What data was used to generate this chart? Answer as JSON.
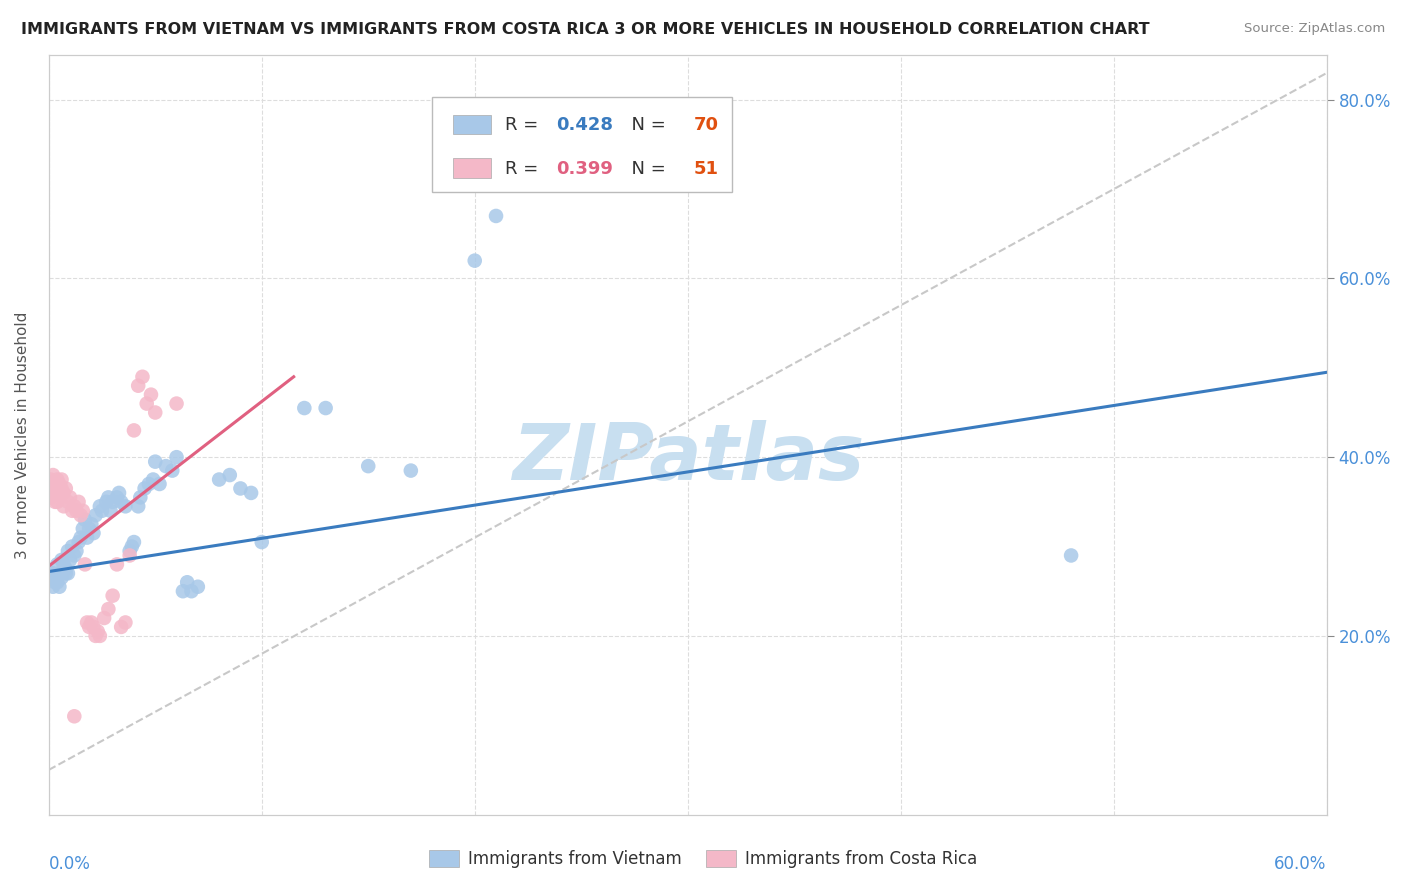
{
  "title": "IMMIGRANTS FROM VIETNAM VS IMMIGRANTS FROM COSTA RICA 3 OR MORE VEHICLES IN HOUSEHOLD CORRELATION CHART",
  "source": "Source: ZipAtlas.com",
  "ylabel_label": "3 or more Vehicles in Household",
  "x_min": 0.0,
  "x_max": 0.6,
  "y_min": 0.0,
  "y_max": 0.85,
  "x_ticks": [
    0.0,
    0.1,
    0.2,
    0.3,
    0.4,
    0.5,
    0.6
  ],
  "y_ticks": [
    0.2,
    0.4,
    0.6,
    0.8
  ],
  "x_tick_labels_left": [
    "0.0%",
    "",
    "",
    "",
    "",
    "",
    ""
  ],
  "x_tick_labels_right": [
    "",
    "",
    "",
    "",
    "",
    "",
    "60.0%"
  ],
  "y_tick_labels": [
    "20.0%",
    "40.0%",
    "60.0%",
    "80.0%"
  ],
  "vietnam_color": "#a8c8e8",
  "costa_rica_color": "#f4b8c8",
  "trend_vietnam_color": "#3a7bbf",
  "trend_costa_rica_color": "#e06080",
  "ref_line_color": "#c8c8c8",
  "watermark_text": "ZIPatlas",
  "watermark_color": "#c8dff0",
  "background_color": "#ffffff",
  "tick_color": "#4a90d9",
  "legend_vietnam_fill": "#a8c8e8",
  "legend_cr_fill": "#f4b8c8",
  "legend_border": "#bbbbbb",
  "vietnam_R": "0.428",
  "vietnam_N": "70",
  "costa_rica_R": "0.399",
  "costa_rica_N": "51",
  "R_label_color": "#333333",
  "vietnam_R_color": "#3a7bbf",
  "cr_R_color": "#e06080",
  "N_color": "#e05010",
  "vietnam_scatter": [
    [
      0.001,
      0.27
    ],
    [
      0.002,
      0.27
    ],
    [
      0.002,
      0.255
    ],
    [
      0.003,
      0.265
    ],
    [
      0.003,
      0.26
    ],
    [
      0.004,
      0.26
    ],
    [
      0.004,
      0.28
    ],
    [
      0.005,
      0.27
    ],
    [
      0.005,
      0.255
    ],
    [
      0.006,
      0.285
    ],
    [
      0.006,
      0.265
    ],
    [
      0.007,
      0.275
    ],
    [
      0.007,
      0.28
    ],
    [
      0.008,
      0.275
    ],
    [
      0.008,
      0.27
    ],
    [
      0.009,
      0.295
    ],
    [
      0.009,
      0.27
    ],
    [
      0.01,
      0.285
    ],
    [
      0.011,
      0.3
    ],
    [
      0.012,
      0.29
    ],
    [
      0.013,
      0.295
    ],
    [
      0.014,
      0.305
    ],
    [
      0.015,
      0.31
    ],
    [
      0.016,
      0.32
    ],
    [
      0.017,
      0.33
    ],
    [
      0.018,
      0.31
    ],
    [
      0.019,
      0.32
    ],
    [
      0.02,
      0.325
    ],
    [
      0.021,
      0.315
    ],
    [
      0.022,
      0.335
    ],
    [
      0.024,
      0.345
    ],
    [
      0.025,
      0.34
    ],
    [
      0.027,
      0.35
    ],
    [
      0.028,
      0.355
    ],
    [
      0.029,
      0.34
    ],
    [
      0.03,
      0.35
    ],
    [
      0.032,
      0.355
    ],
    [
      0.033,
      0.36
    ],
    [
      0.034,
      0.35
    ],
    [
      0.036,
      0.345
    ],
    [
      0.038,
      0.295
    ],
    [
      0.039,
      0.3
    ],
    [
      0.04,
      0.305
    ],
    [
      0.042,
      0.345
    ],
    [
      0.043,
      0.355
    ],
    [
      0.045,
      0.365
    ],
    [
      0.047,
      0.37
    ],
    [
      0.049,
      0.375
    ],
    [
      0.05,
      0.395
    ],
    [
      0.052,
      0.37
    ],
    [
      0.055,
      0.39
    ],
    [
      0.058,
      0.385
    ],
    [
      0.06,
      0.4
    ],
    [
      0.063,
      0.25
    ],
    [
      0.065,
      0.26
    ],
    [
      0.067,
      0.25
    ],
    [
      0.07,
      0.255
    ],
    [
      0.08,
      0.375
    ],
    [
      0.085,
      0.38
    ],
    [
      0.09,
      0.365
    ],
    [
      0.095,
      0.36
    ],
    [
      0.1,
      0.305
    ],
    [
      0.12,
      0.455
    ],
    [
      0.13,
      0.455
    ],
    [
      0.15,
      0.39
    ],
    [
      0.17,
      0.385
    ],
    [
      0.2,
      0.62
    ],
    [
      0.21,
      0.67
    ],
    [
      0.48,
      0.29
    ]
  ],
  "costa_rica_scatter": [
    [
      0.001,
      0.375
    ],
    [
      0.001,
      0.365
    ],
    [
      0.001,
      0.355
    ],
    [
      0.002,
      0.38
    ],
    [
      0.002,
      0.37
    ],
    [
      0.002,
      0.36
    ],
    [
      0.003,
      0.37
    ],
    [
      0.003,
      0.36
    ],
    [
      0.003,
      0.35
    ],
    [
      0.004,
      0.375
    ],
    [
      0.004,
      0.365
    ],
    [
      0.004,
      0.35
    ],
    [
      0.005,
      0.37
    ],
    [
      0.005,
      0.36
    ],
    [
      0.006,
      0.375
    ],
    [
      0.006,
      0.365
    ],
    [
      0.007,
      0.36
    ],
    [
      0.007,
      0.345
    ],
    [
      0.008,
      0.365
    ],
    [
      0.009,
      0.35
    ],
    [
      0.01,
      0.355
    ],
    [
      0.011,
      0.34
    ],
    [
      0.012,
      0.345
    ],
    [
      0.013,
      0.34
    ],
    [
      0.014,
      0.35
    ],
    [
      0.015,
      0.335
    ],
    [
      0.016,
      0.34
    ],
    [
      0.017,
      0.28
    ],
    [
      0.018,
      0.215
    ],
    [
      0.019,
      0.21
    ],
    [
      0.02,
      0.215
    ],
    [
      0.021,
      0.21
    ],
    [
      0.022,
      0.2
    ],
    [
      0.023,
      0.205
    ],
    [
      0.024,
      0.2
    ],
    [
      0.026,
      0.22
    ],
    [
      0.028,
      0.23
    ],
    [
      0.03,
      0.245
    ],
    [
      0.032,
      0.28
    ],
    [
      0.034,
      0.21
    ],
    [
      0.036,
      0.215
    ],
    [
      0.038,
      0.29
    ],
    [
      0.04,
      0.43
    ],
    [
      0.042,
      0.48
    ],
    [
      0.044,
      0.49
    ],
    [
      0.046,
      0.46
    ],
    [
      0.048,
      0.47
    ],
    [
      0.05,
      0.45
    ],
    [
      0.06,
      0.46
    ],
    [
      0.012,
      0.11
    ]
  ],
  "vietnam_trend_x": [
    0.0,
    0.6
  ],
  "vietnam_trend_y": [
    0.272,
    0.495
  ],
  "costa_rica_trend_x": [
    0.0,
    0.115
  ],
  "costa_rica_trend_y": [
    0.278,
    0.49
  ],
  "ref_line_x": [
    0.0,
    0.6
  ],
  "ref_line_y": [
    0.05,
    0.83
  ]
}
